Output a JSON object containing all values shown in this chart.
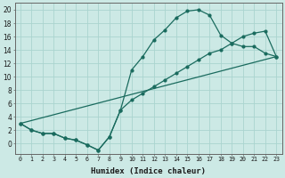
{
  "xlabel": "Humidex (Indice chaleur)",
  "background_color": "#cce9e5",
  "grid_color": "#aad4cf",
  "line_color": "#1a6b5e",
  "xlim": [
    -0.5,
    23.5
  ],
  "ylim": [
    -1.5,
    21.0
  ],
  "xtick_labels": [
    "0",
    "1",
    "2",
    "3",
    "4",
    "5",
    "6",
    "7",
    "8",
    "9",
    "10",
    "11",
    "12",
    "13",
    "14",
    "15",
    "16",
    "17",
    "18",
    "19",
    "20",
    "21",
    "22",
    "23"
  ],
  "ytick_vals": [
    0,
    2,
    4,
    6,
    8,
    10,
    12,
    14,
    16,
    18,
    20
  ],
  "curve1_x": [
    0,
    1,
    2,
    3,
    4,
    5,
    6,
    7,
    8,
    9,
    10,
    11,
    12,
    13,
    14,
    15,
    16,
    17,
    18,
    19,
    20,
    21,
    22,
    23
  ],
  "curve1_y": [
    3.0,
    2.0,
    1.5,
    1.5,
    0.8,
    0.5,
    -0.2,
    -1.0,
    1.0,
    5.0,
    11.0,
    13.0,
    15.5,
    17.0,
    18.8,
    19.8,
    20.0,
    19.2,
    16.2,
    15.0,
    14.5,
    14.5,
    13.5,
    13.0
  ],
  "curve2_x": [
    0,
    1,
    2,
    3,
    4,
    5,
    6,
    7,
    8,
    9,
    10,
    11,
    12,
    13,
    14,
    15,
    16,
    17,
    18,
    19,
    20,
    21,
    22,
    23
  ],
  "curve2_y": [
    3.0,
    2.0,
    1.5,
    1.5,
    0.8,
    0.5,
    -0.2,
    -1.0,
    1.0,
    5.0,
    6.5,
    7.5,
    8.5,
    9.5,
    10.5,
    11.5,
    12.5,
    13.5,
    14.0,
    15.0,
    16.0,
    16.5,
    16.8,
    13.0
  ],
  "curve3_x": [
    0,
    23
  ],
  "curve3_y": [
    3.0,
    13.0
  ],
  "xlabel_fontsize": 6.5,
  "xtick_fontsize": 4.8,
  "ytick_fontsize": 5.5
}
